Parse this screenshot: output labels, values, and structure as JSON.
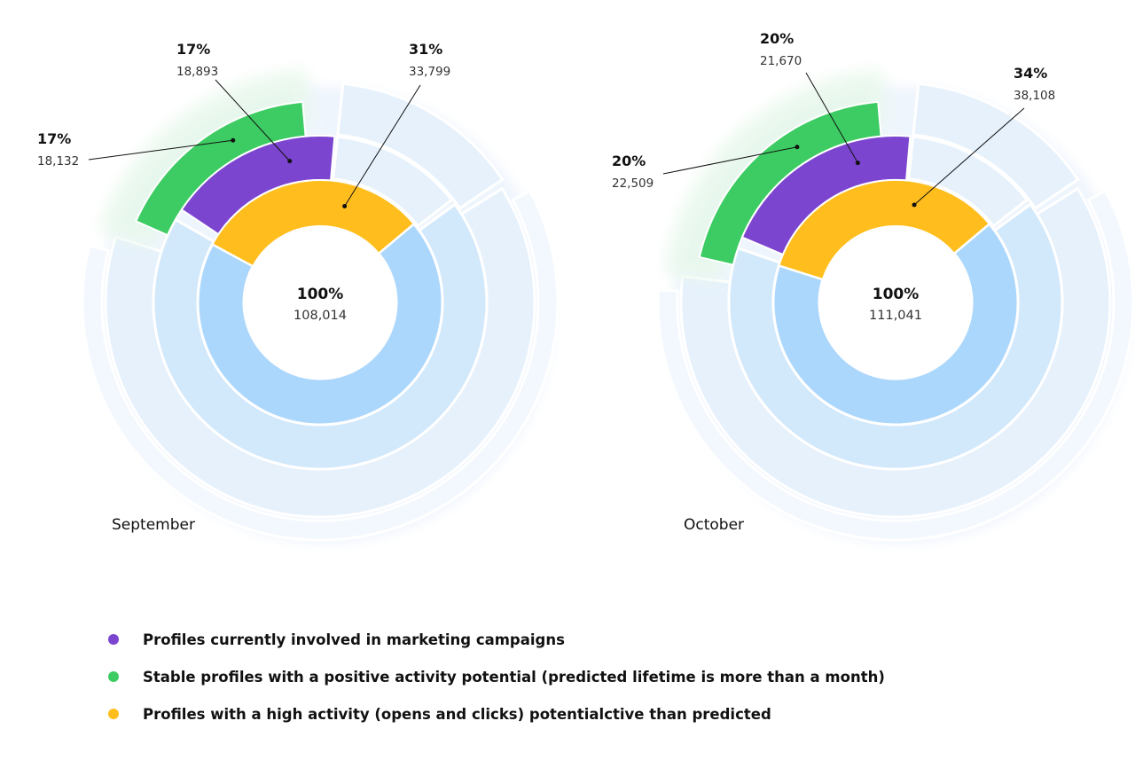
{
  "chart_data": [
    {
      "type": "pie",
      "title": "September",
      "center": {
        "pct": "100%",
        "value": "108,014"
      },
      "segments": [
        {
          "series": "marketing",
          "pct": "17%",
          "value": "18,893",
          "share": 0.17
        },
        {
          "series": "stable",
          "pct": "17%",
          "value": "18,132",
          "share": 0.17
        },
        {
          "series": "high_activity",
          "pct": "31%",
          "value": "33,799",
          "share": 0.31
        }
      ]
    },
    {
      "type": "pie",
      "title": "October",
      "center": {
        "pct": "100%",
        "value": "111,041"
      },
      "segments": [
        {
          "series": "marketing",
          "pct": "20%",
          "value": "21,670",
          "share": 0.2
        },
        {
          "series": "stable",
          "pct": "20%",
          "value": "22,509",
          "share": 0.2
        },
        {
          "series": "high_activity",
          "pct": "34%",
          "value": "38,108",
          "share": 0.34
        }
      ]
    }
  ],
  "legend": [
    {
      "key": "marketing",
      "label": "Profiles currently involved in marketing campaigns",
      "color": "#7B45CF"
    },
    {
      "key": "stable",
      "label": "Stable profiles with a positive activity potential (predicted lifetime is more than a month)",
      "color": "#3DCC63"
    },
    {
      "key": "high_activity",
      "label": "Profiles with a high activity (opens and clicks) potentialctive than predicted",
      "color": "#FFBE1E"
    }
  ],
  "colors": {
    "base": "#ACD7FC",
    "base_light": "#D2E8FB",
    "base_lighter": "#E6F1FC"
  }
}
